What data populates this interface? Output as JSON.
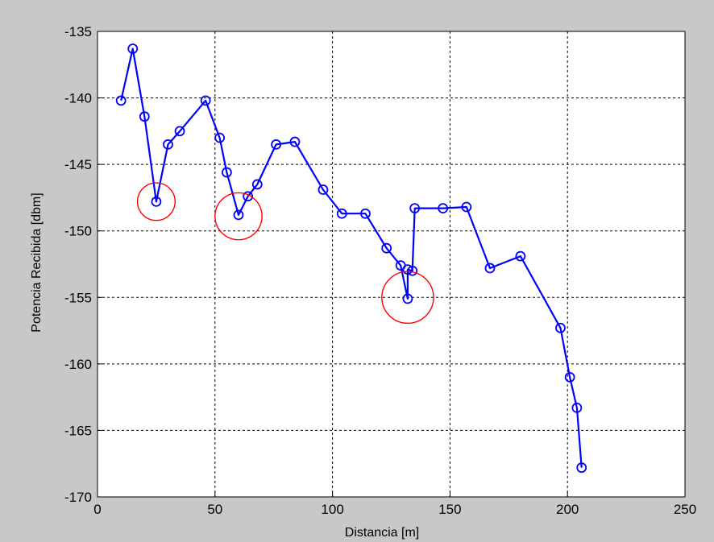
{
  "chart_data": {
    "type": "line",
    "title": "",
    "xlabel": "Distancia [m]",
    "ylabel": "Potencia Recibida [dbm]",
    "xlim": [
      0,
      250
    ],
    "ylim": [
      -170,
      -135
    ],
    "xticks": [
      0,
      50,
      100,
      150,
      200,
      250
    ],
    "yticks": [
      -135,
      -140,
      -145,
      -150,
      -155,
      -160,
      -165,
      -170
    ],
    "grid": true,
    "series": [
      {
        "marker": "circle",
        "color": "#0000ff",
        "points": [
          [
            10,
            -140.2
          ],
          [
            15,
            -136.3
          ],
          [
            20,
            -141.4
          ],
          [
            25,
            -147.8
          ],
          [
            30,
            -143.5
          ],
          [
            35,
            -142.5
          ],
          [
            46,
            -140.2
          ],
          [
            52,
            -143.0
          ],
          [
            55,
            -145.6
          ],
          [
            60,
            -148.8
          ],
          [
            64,
            -147.4
          ],
          [
            68,
            -146.5
          ],
          [
            76,
            -143.5
          ],
          [
            84,
            -143.3
          ],
          [
            96,
            -146.9
          ],
          [
            104,
            -148.7
          ],
          [
            114,
            -148.7
          ],
          [
            123,
            -151.3
          ],
          [
            129,
            -152.6
          ],
          [
            132,
            -155.1
          ],
          [
            132,
            -152.9
          ],
          [
            134,
            -153.0
          ],
          [
            135,
            -148.3
          ],
          [
            147,
            -148.3
          ],
          [
            157,
            -148.2
          ],
          [
            167,
            -152.8
          ],
          [
            180,
            -151.9
          ],
          [
            197,
            -157.3
          ],
          [
            201,
            -161.0
          ],
          [
            204,
            -163.3
          ],
          [
            206,
            -167.8
          ]
        ]
      }
    ],
    "annotations": [
      {
        "shape": "circle",
        "color": "#ff0000",
        "cx": 25,
        "cy": -147.8,
        "r": 8
      },
      {
        "shape": "circle",
        "color": "#ff0000",
        "cx": 60,
        "cy": -148.9,
        "r": 10
      },
      {
        "shape": "circle",
        "color": "#ff0000",
        "cx": 132,
        "cy": -155.0,
        "r": 11
      }
    ]
  }
}
